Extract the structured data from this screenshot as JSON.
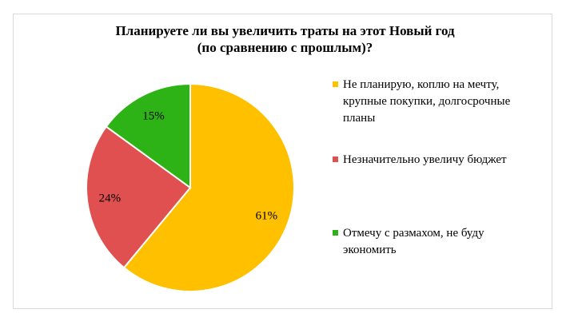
{
  "chart_data": {
    "type": "pie",
    "title_lines": [
      "Планируете ли вы увеличить траты на этот Новый год",
      "(по сравнению с прошлым)?"
    ],
    "slices": [
      {
        "name": "Не планирую, коплю на мечту, крупные покупки, долгосрочные планы",
        "legend_text": "Не планирую, коплю на мечту,\nкрупные покупки, долгосрочные\nпланы",
        "value": 61,
        "label": "61%",
        "color": "#FFC000"
      },
      {
        "name": "Незначительно увеличу бюджет",
        "legend_text": "Незначительно увеличу бюджет",
        "value": 24,
        "label": "24%",
        "color": "#E05050"
      },
      {
        "name": "Отмечу с размахом, не буду экономить",
        "legend_text": "Отмечу с размахом, не буду\nэкономить",
        "value": 15,
        "label": "15%",
        "color": "#2EB317"
      }
    ],
    "legend_position": "right"
  }
}
